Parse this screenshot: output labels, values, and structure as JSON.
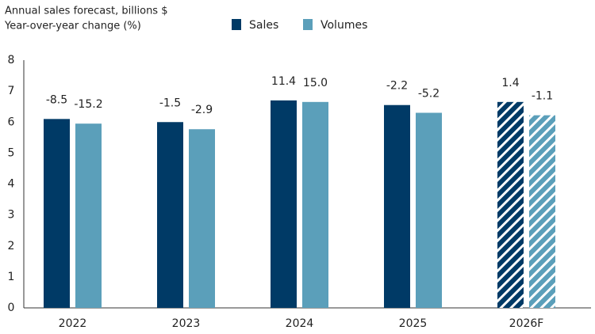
{
  "chart_data": {
    "type": "bar",
    "title": "Annual sales forecast, billions $",
    "subtitle": "Year-over-year change (%)",
    "categories": [
      "2022",
      "2023",
      "2024",
      "2025",
      "2026F"
    ],
    "series": [
      {
        "name": "Sales",
        "color": "#003a66",
        "values": [
          6.1,
          6.0,
          6.7,
          6.55,
          6.65
        ],
        "yoy_change": [
          -8.5,
          -1.5,
          11.4,
          -2.2,
          1.4
        ]
      },
      {
        "name": "Volumes",
        "color": "#5b9fba",
        "values": [
          5.95,
          5.77,
          6.65,
          6.3,
          6.22
        ],
        "yoy_change": [
          -15.2,
          -2.9,
          {
            "value": 15,
            "label": "15.0"
          },
          -5.2,
          -1.1
        ]
      }
    ],
    "hatched": [
      false,
      false,
      false,
      false,
      true
    ],
    "ylim": [
      0,
      8
    ],
    "yticks": [
      0,
      1,
      2,
      3,
      4,
      5,
      6,
      7,
      8
    ],
    "grid": false
  }
}
